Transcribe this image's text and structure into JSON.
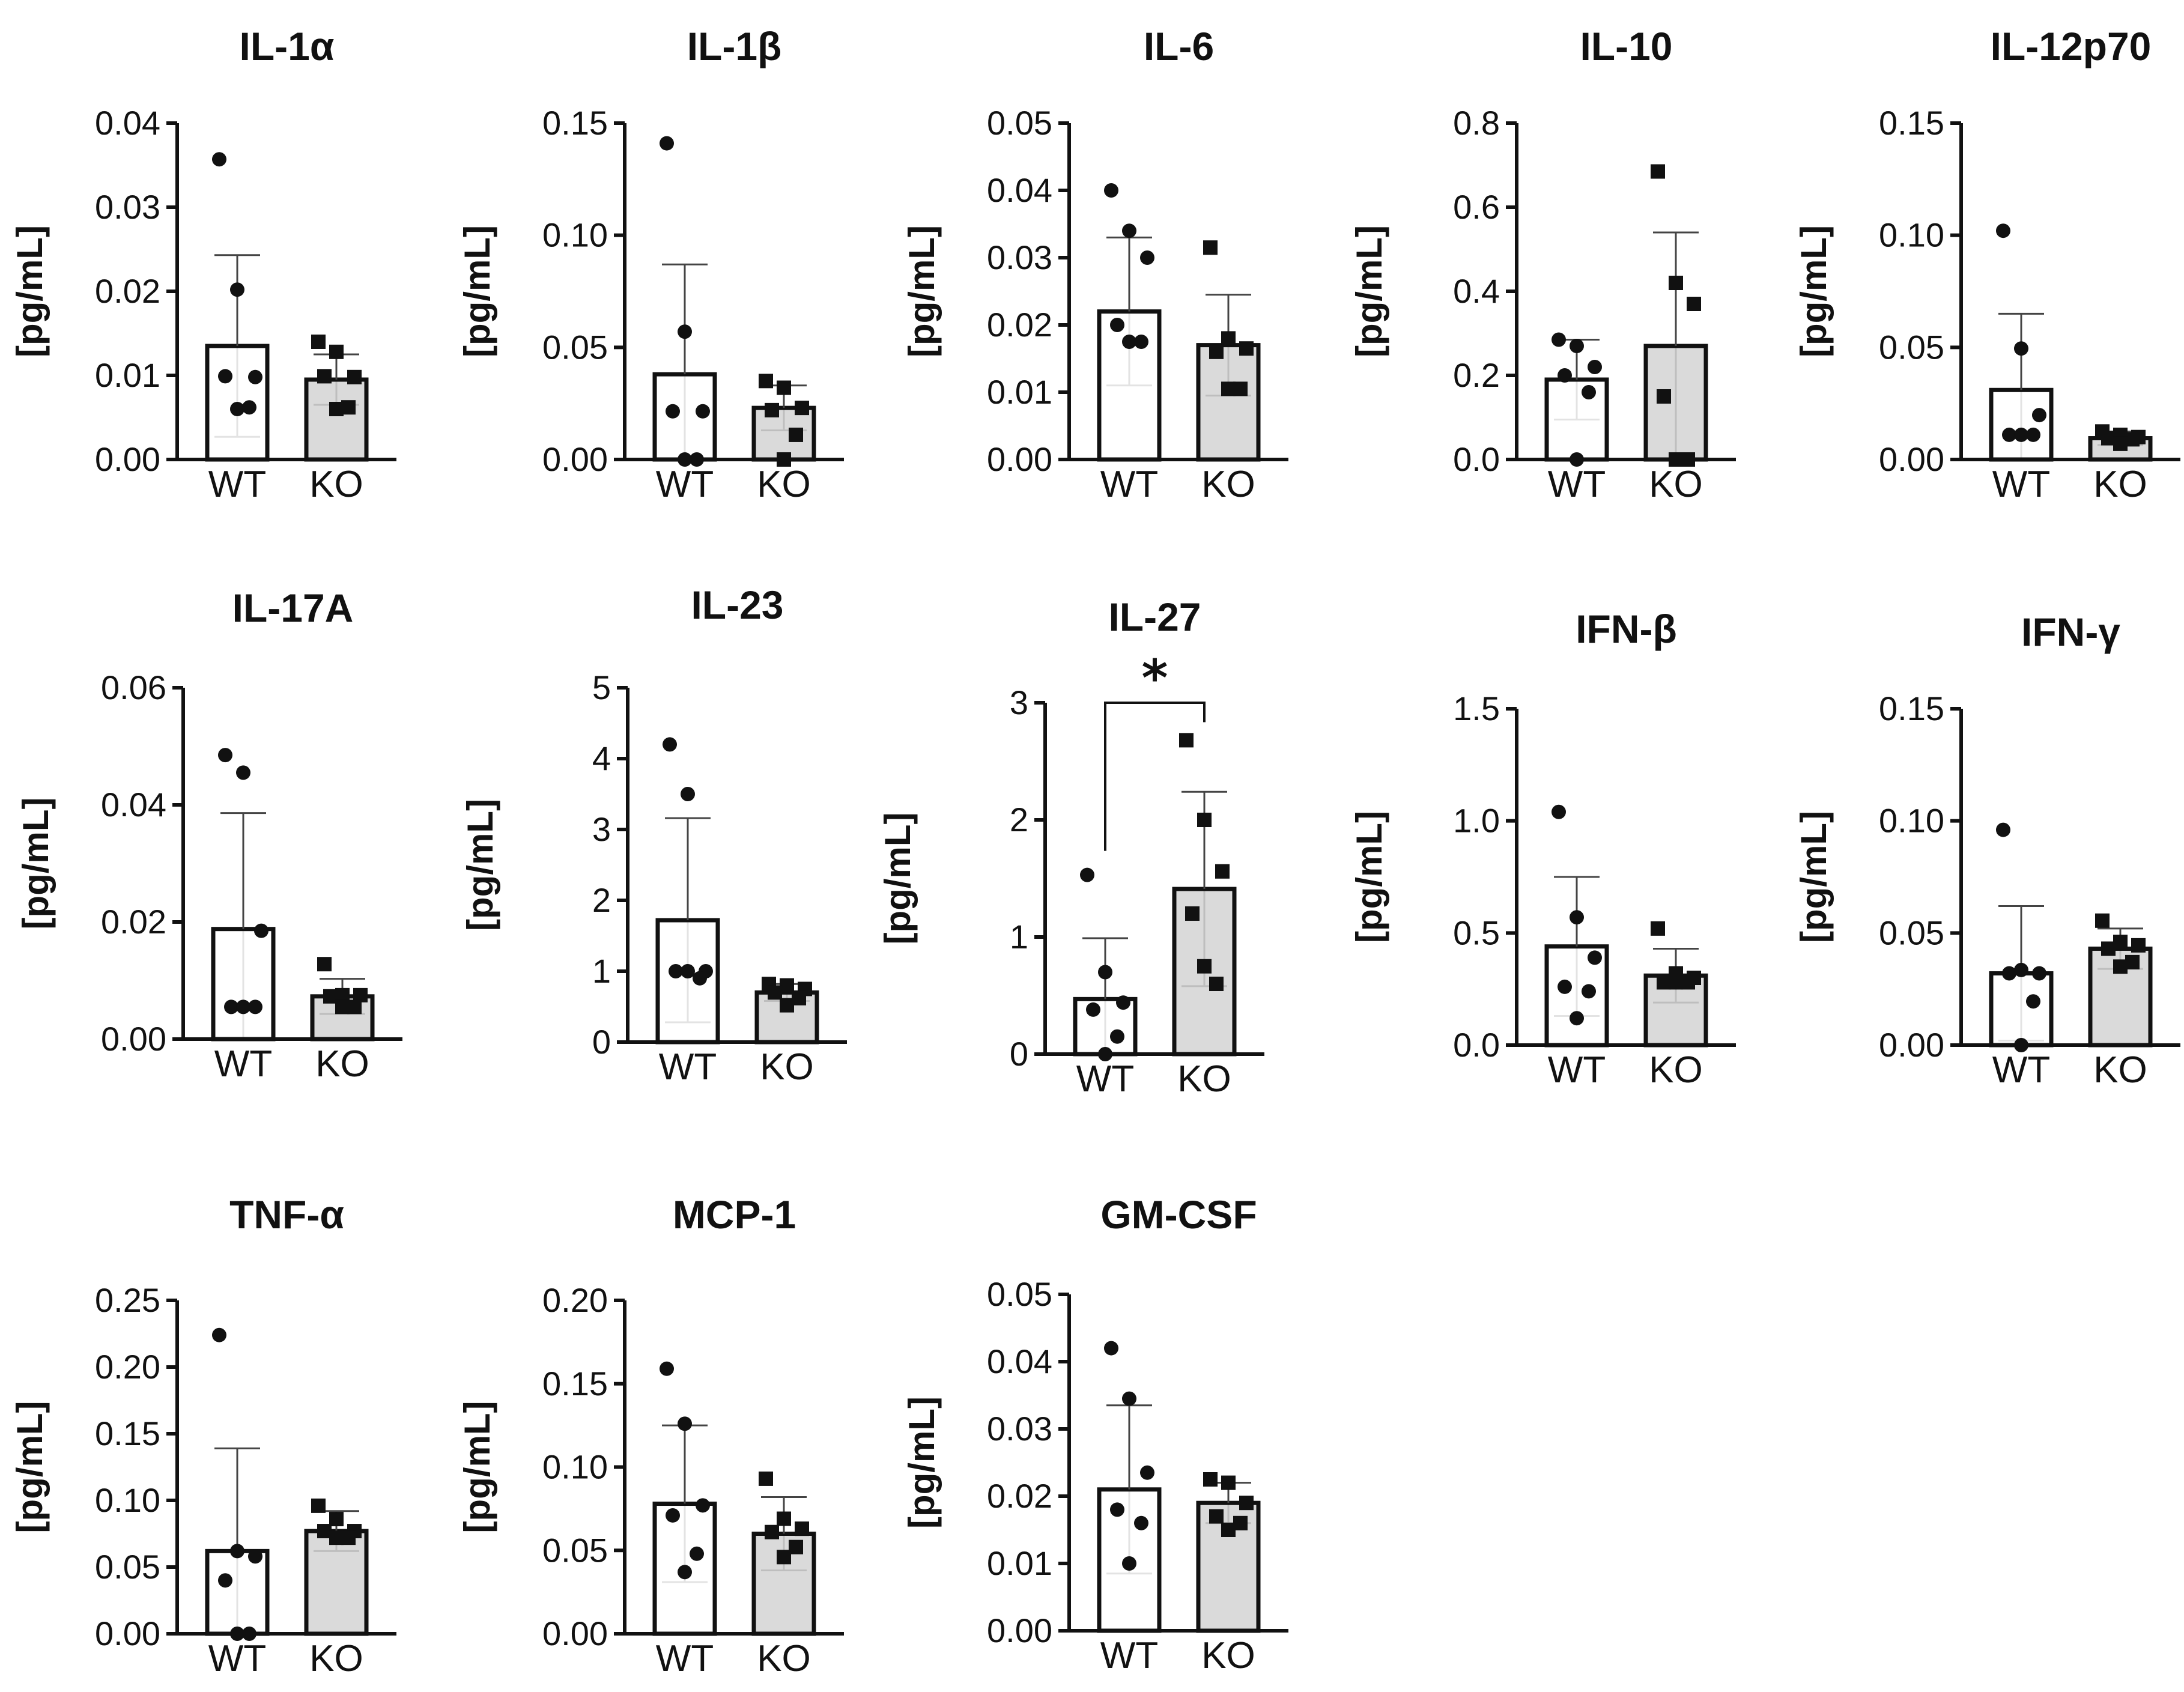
{
  "chart_data": [
    {
      "type": "bar",
      "title": "IL-1α",
      "ylabel": "[pg/mL]",
      "categories": [
        "WT",
        "KO"
      ],
      "ylim": [
        0,
        0.04
      ],
      "yticks": [
        "0.00",
        "0.01",
        "0.02",
        "0.03",
        "0.04"
      ],
      "series": [
        {
          "values": [
            0.0135,
            0.0095
          ],
          "error": [
            0.0108,
            0.003
          ],
          "points": [
            [
              0.0357,
              0.0202,
              0.0098,
              0.0099,
              0.0062,
              0.006
            ],
            [
              0.014,
              0.0128,
              0.0098,
              0.0099,
              0.0062,
              0.006
            ]
          ]
        }
      ],
      "significance": null
    },
    {
      "type": "bar",
      "title": "IL-1β",
      "ylabel": "[pg/mL]",
      "categories": [
        "WT",
        "KO"
      ],
      "ylim": [
        0,
        0.15
      ],
      "yticks": [
        "0.00",
        "0.05",
        "0.10",
        "0.15"
      ],
      "series": [
        {
          "values": [
            0.038,
            0.023
          ],
          "error": [
            0.049,
            0.01
          ],
          "points": [
            [
              0.141,
              0.057,
              0.0215,
              0.0215,
              0.0,
              0.0
            ],
            [
              0.035,
              0.032,
              0.023,
              0.022,
              0.011,
              0.0
            ]
          ]
        }
      ],
      "significance": null
    },
    {
      "type": "bar",
      "title": "IL-6",
      "ylabel": "[pg/mL]",
      "categories": [
        "WT",
        "KO"
      ],
      "ylim": [
        0,
        0.05
      ],
      "yticks": [
        "0.00",
        "0.01",
        "0.02",
        "0.03",
        "0.04",
        "0.05"
      ],
      "series": [
        {
          "values": [
            0.022,
            0.017
          ],
          "error": [
            0.011,
            0.0075
          ],
          "points": [
            [
              0.04,
              0.034,
              0.03,
              0.02,
              0.0175,
              0.0175
            ],
            [
              0.0315,
              0.018,
              0.0165,
              0.016,
              0.0105,
              0.0105
            ]
          ]
        }
      ],
      "significance": null
    },
    {
      "type": "bar",
      "title": "IL-10",
      "ylabel": "[pg/mL]",
      "categories": [
        "WT",
        "KO"
      ],
      "ylim": [
        0,
        0.8
      ],
      "yticks": [
        "0.0",
        "0.2",
        "0.4",
        "0.6",
        "0.8"
      ],
      "series": [
        {
          "values": [
            0.19,
            0.27
          ],
          "error": [
            0.095,
            0.27
          ],
          "points": [
            [
              0.285,
              0.27,
              0.22,
              0.2,
              0.16,
              0.0
            ],
            [
              0.685,
              0.42,
              0.37,
              0.15,
              0.0,
              0.0
            ]
          ]
        }
      ],
      "significance": null
    },
    {
      "type": "bar",
      "title": "IL-12p70",
      "ylabel": "[pg/mL]",
      "categories": [
        "WT",
        "KO"
      ],
      "ylim": [
        0,
        0.15
      ],
      "yticks": [
        "0.00",
        "0.05",
        "0.10",
        "0.15"
      ],
      "series": [
        {
          "values": [
            0.031,
            0.0095
          ],
          "error": [
            0.034,
            0.003
          ],
          "points": [
            [
              0.102,
              0.0495,
              0.0198,
              0.011,
              0.011,
              0.011
            ],
            [
              0.0125,
              0.011,
              0.01,
              0.0095,
              0.009,
              0.007
            ]
          ]
        }
      ],
      "significance": null
    },
    {
      "type": "bar",
      "title": "IL-17A",
      "ylabel": "[pg/mL]",
      "categories": [
        "WT",
        "KO"
      ],
      "ylim": [
        0,
        0.06
      ],
      "yticks": [
        "0.00",
        "0.02",
        "0.04",
        "0.06"
      ],
      "series": [
        {
          "values": [
            0.0188,
            0.0073
          ],
          "error": [
            0.0198,
            0.003
          ],
          "points": [
            [
              0.0485,
              0.0455,
              0.0185,
              0.0055,
              0.0055,
              0.0055
            ],
            [
              0.0128,
              0.0075,
              0.0075,
              0.0073,
              0.0055,
              0.0055
            ]
          ]
        }
      ],
      "significance": null
    },
    {
      "type": "bar",
      "title": "IL-23",
      "ylabel": "[pg/mL]",
      "categories": [
        "WT",
        "KO"
      ],
      "ylim": [
        0,
        5
      ],
      "yticks": [
        "0",
        "1",
        "2",
        "3",
        "4",
        "5"
      ],
      "series": [
        {
          "values": [
            1.72,
            0.7
          ],
          "error": [
            1.44,
            0.12
          ],
          "points": [
            [
              4.2,
              3.5,
              1.0,
              1.0,
              0.9,
              1.0
            ],
            [
              0.82,
              0.8,
              0.75,
              0.7,
              0.62,
              0.52
            ]
          ]
        }
      ],
      "significance": null
    },
    {
      "type": "bar",
      "title": "IL-27",
      "ylabel": "[pg/mL]",
      "categories": [
        "WT",
        "KO"
      ],
      "ylim": [
        0,
        3
      ],
      "yticks": [
        "0",
        "1",
        "2",
        "3"
      ],
      "series": [
        {
          "values": [
            0.47,
            1.41
          ],
          "error": [
            0.52,
            0.83
          ],
          "points": [
            [
              1.53,
              0.7,
              0.44,
              0.38,
              0.15,
              0.0
            ],
            [
              2.68,
              2.0,
              1.56,
              1.2,
              0.6,
              0.75
            ]
          ]
        }
      ],
      "significance": "*"
    },
    {
      "type": "bar",
      "title": "IFN-β",
      "ylabel": "[pg/mL]",
      "categories": [
        "WT",
        "KO"
      ],
      "ylim": [
        0,
        1.5
      ],
      "yticks": [
        "0.0",
        "0.5",
        "1.0",
        "1.5"
      ],
      "series": [
        {
          "values": [
            0.44,
            0.31
          ],
          "error": [
            0.31,
            0.12
          ],
          "points": [
            [
              1.04,
              0.57,
              0.39,
              0.26,
              0.24,
              0.12
            ],
            [
              0.52,
              0.32,
              0.3,
              0.28,
              0.28,
              0.28
            ]
          ]
        }
      ],
      "significance": null
    },
    {
      "type": "bar",
      "title": "IFN-γ",
      "ylabel": "[pg/mL]",
      "categories": [
        "WT",
        "KO"
      ],
      "ylim": [
        0,
        0.15
      ],
      "yticks": [
        "0.00",
        "0.05",
        "0.10",
        "0.15"
      ],
      "series": [
        {
          "values": [
            0.032,
            0.043
          ],
          "error": [
            0.03,
            0.009
          ],
          "points": [
            [
              0.096,
              0.0335,
              0.032,
              0.032,
              0.0195,
              0.0
            ],
            [
              0.0555,
              0.046,
              0.0445,
              0.043,
              0.037,
              0.035
            ]
          ]
        }
      ],
      "significance": null
    },
    {
      "type": "bar",
      "title": "TNF-α",
      "ylabel": "[pg/mL]",
      "categories": [
        "WT",
        "KO"
      ],
      "ylim": [
        0,
        0.25
      ],
      "yticks": [
        "0.00",
        "0.05",
        "0.10",
        "0.15",
        "0.20",
        "0.25"
      ],
      "series": [
        {
          "values": [
            0.062,
            0.077
          ],
          "error": [
            0.077,
            0.015
          ],
          "points": [
            [
              0.224,
              0.062,
              0.058,
              0.04,
              0.0,
              0.0
            ],
            [
              0.096,
              0.086,
              0.077,
              0.077,
              0.072,
              0.072
            ]
          ]
        }
      ],
      "significance": null
    },
    {
      "type": "bar",
      "title": "MCP-1",
      "ylabel": "[pg/mL]",
      "categories": [
        "WT",
        "KO"
      ],
      "ylim": [
        0,
        0.2
      ],
      "yticks": [
        "0.00",
        "0.05",
        "0.10",
        "0.15",
        "0.20"
      ],
      "series": [
        {
          "values": [
            0.078,
            0.06
          ],
          "error": [
            0.047,
            0.022
          ],
          "points": [
            [
              0.159,
              0.126,
              0.077,
              0.071,
              0.048,
              0.037
            ],
            [
              0.093,
              0.069,
              0.063,
              0.061,
              0.052,
              0.046
            ]
          ]
        }
      ],
      "significance": null
    },
    {
      "type": "bar",
      "title": "GM-CSF",
      "ylabel": "[pg/mL]",
      "categories": [
        "WT",
        "KO"
      ],
      "ylim": [
        0,
        0.05
      ],
      "yticks": [
        "0.00",
        "0.01",
        "0.02",
        "0.03",
        "0.04",
        "0.05"
      ],
      "series": [
        {
          "values": [
            0.021,
            0.019
          ],
          "error": [
            0.0125,
            0.003
          ],
          "points": [
            [
              0.042,
              0.0345,
              0.0235,
              0.018,
              0.016,
              0.01
            ],
            [
              0.0225,
              0.022,
              0.019,
              0.017,
              0.016,
              0.015
            ]
          ]
        }
      ],
      "significance": null
    }
  ]
}
